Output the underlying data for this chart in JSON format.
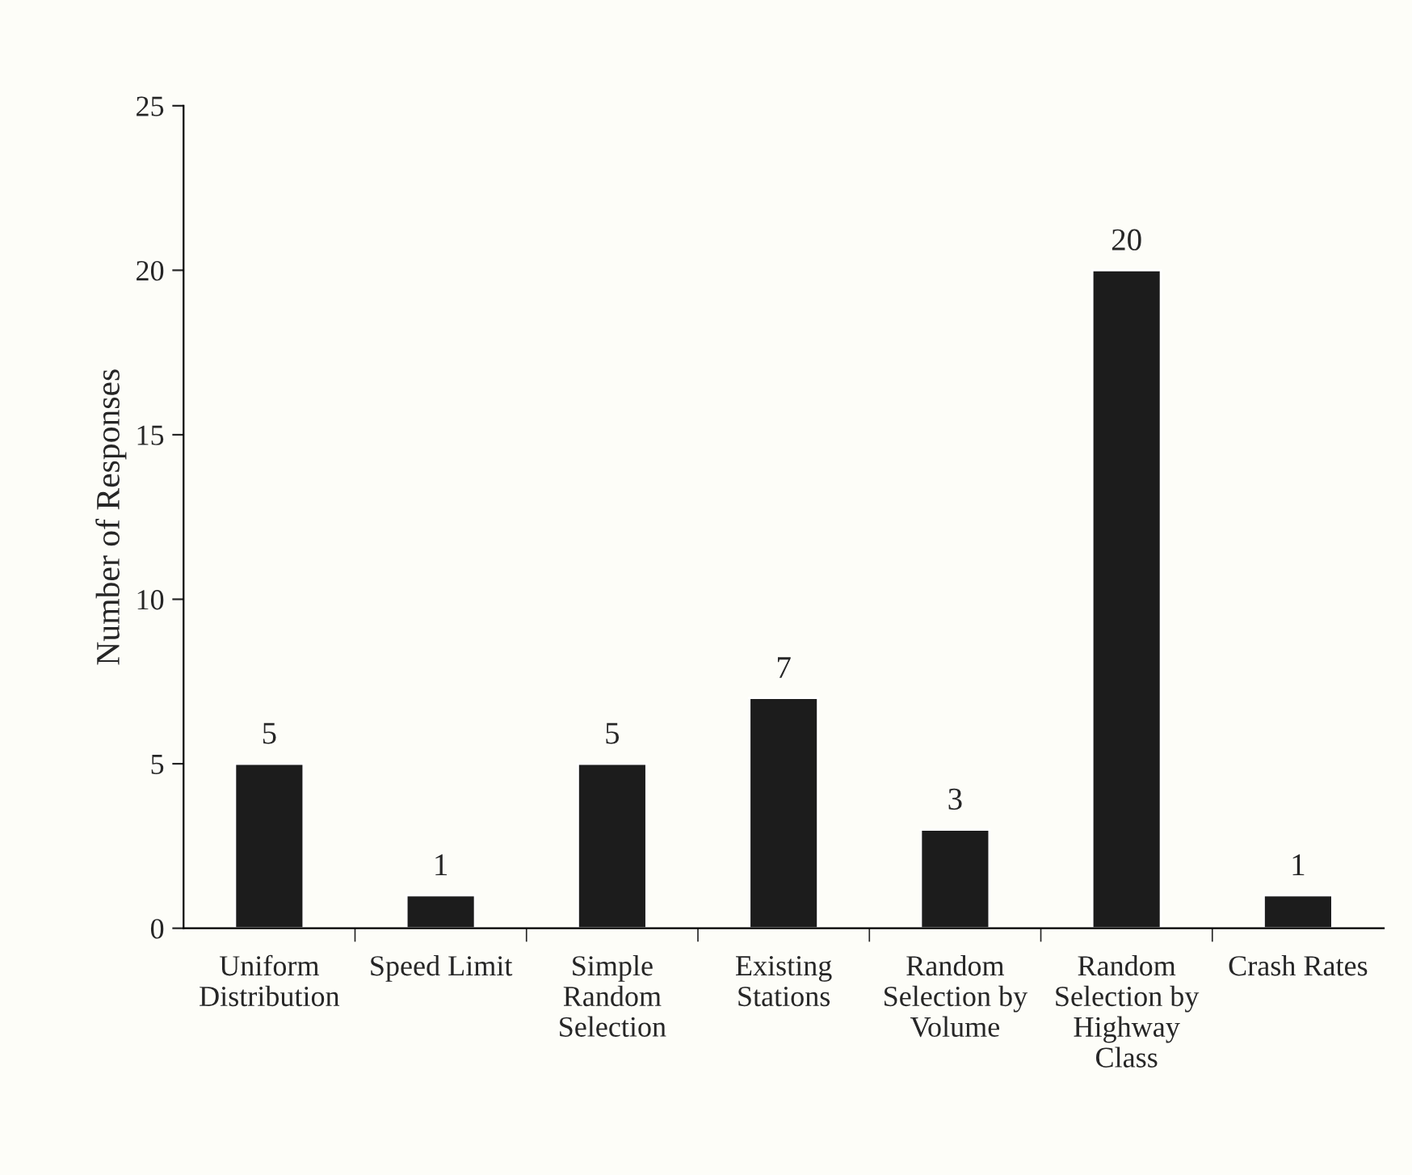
{
  "chart_data": {
    "type": "bar",
    "ylabel": "Number of Responses",
    "categories": [
      "Uniform\nDistribution",
      "Speed Limit",
      "Simple\nRandom\nSelection",
      "Existing\nStations",
      "Random\nSelection by\nVolume",
      "Random\nSelection by\nHighway\nClass",
      "Crash Rates"
    ],
    "values": [
      5,
      1,
      5,
      7,
      3,
      20,
      1
    ],
    "color": "#1c1c1c",
    "ylim": [
      0,
      25
    ],
    "yticks": [
      0,
      5,
      10,
      15,
      20,
      25
    ],
    "data_labels": true,
    "grid": false
  }
}
